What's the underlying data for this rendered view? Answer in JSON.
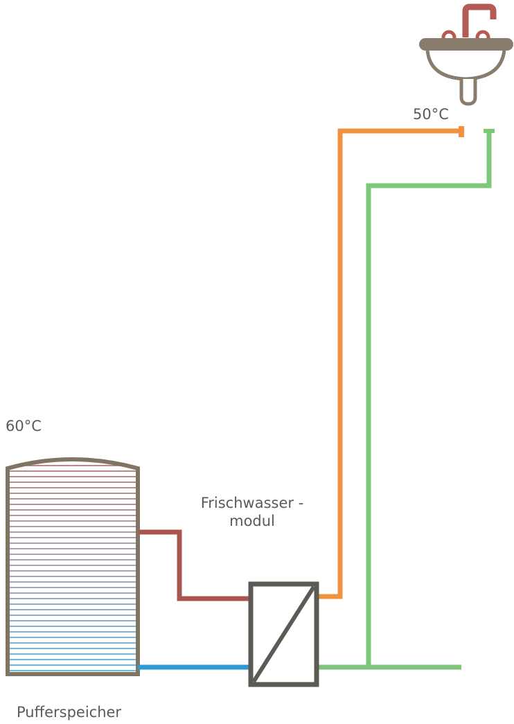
{
  "labels": {
    "tank_temp": "60°C",
    "tap_temp": "50°C",
    "module_line1": "Frischwasser  -",
    "module_line2": "modul",
    "tank_name": "Pufferspeicher"
  },
  "colors": {
    "hot_supply": "#a8574f",
    "cold_return": "#2b9ad6",
    "hot_water": "#f0913f",
    "cold_water": "#7ec77a",
    "outline": "#5b5a55",
    "sink": "#8a7c6c",
    "faucet": "#b35a55"
  },
  "icons": {
    "sink": "washbasin-icon",
    "faucet": "faucet-icon",
    "heat_exchanger": "heat-exchanger-icon"
  }
}
